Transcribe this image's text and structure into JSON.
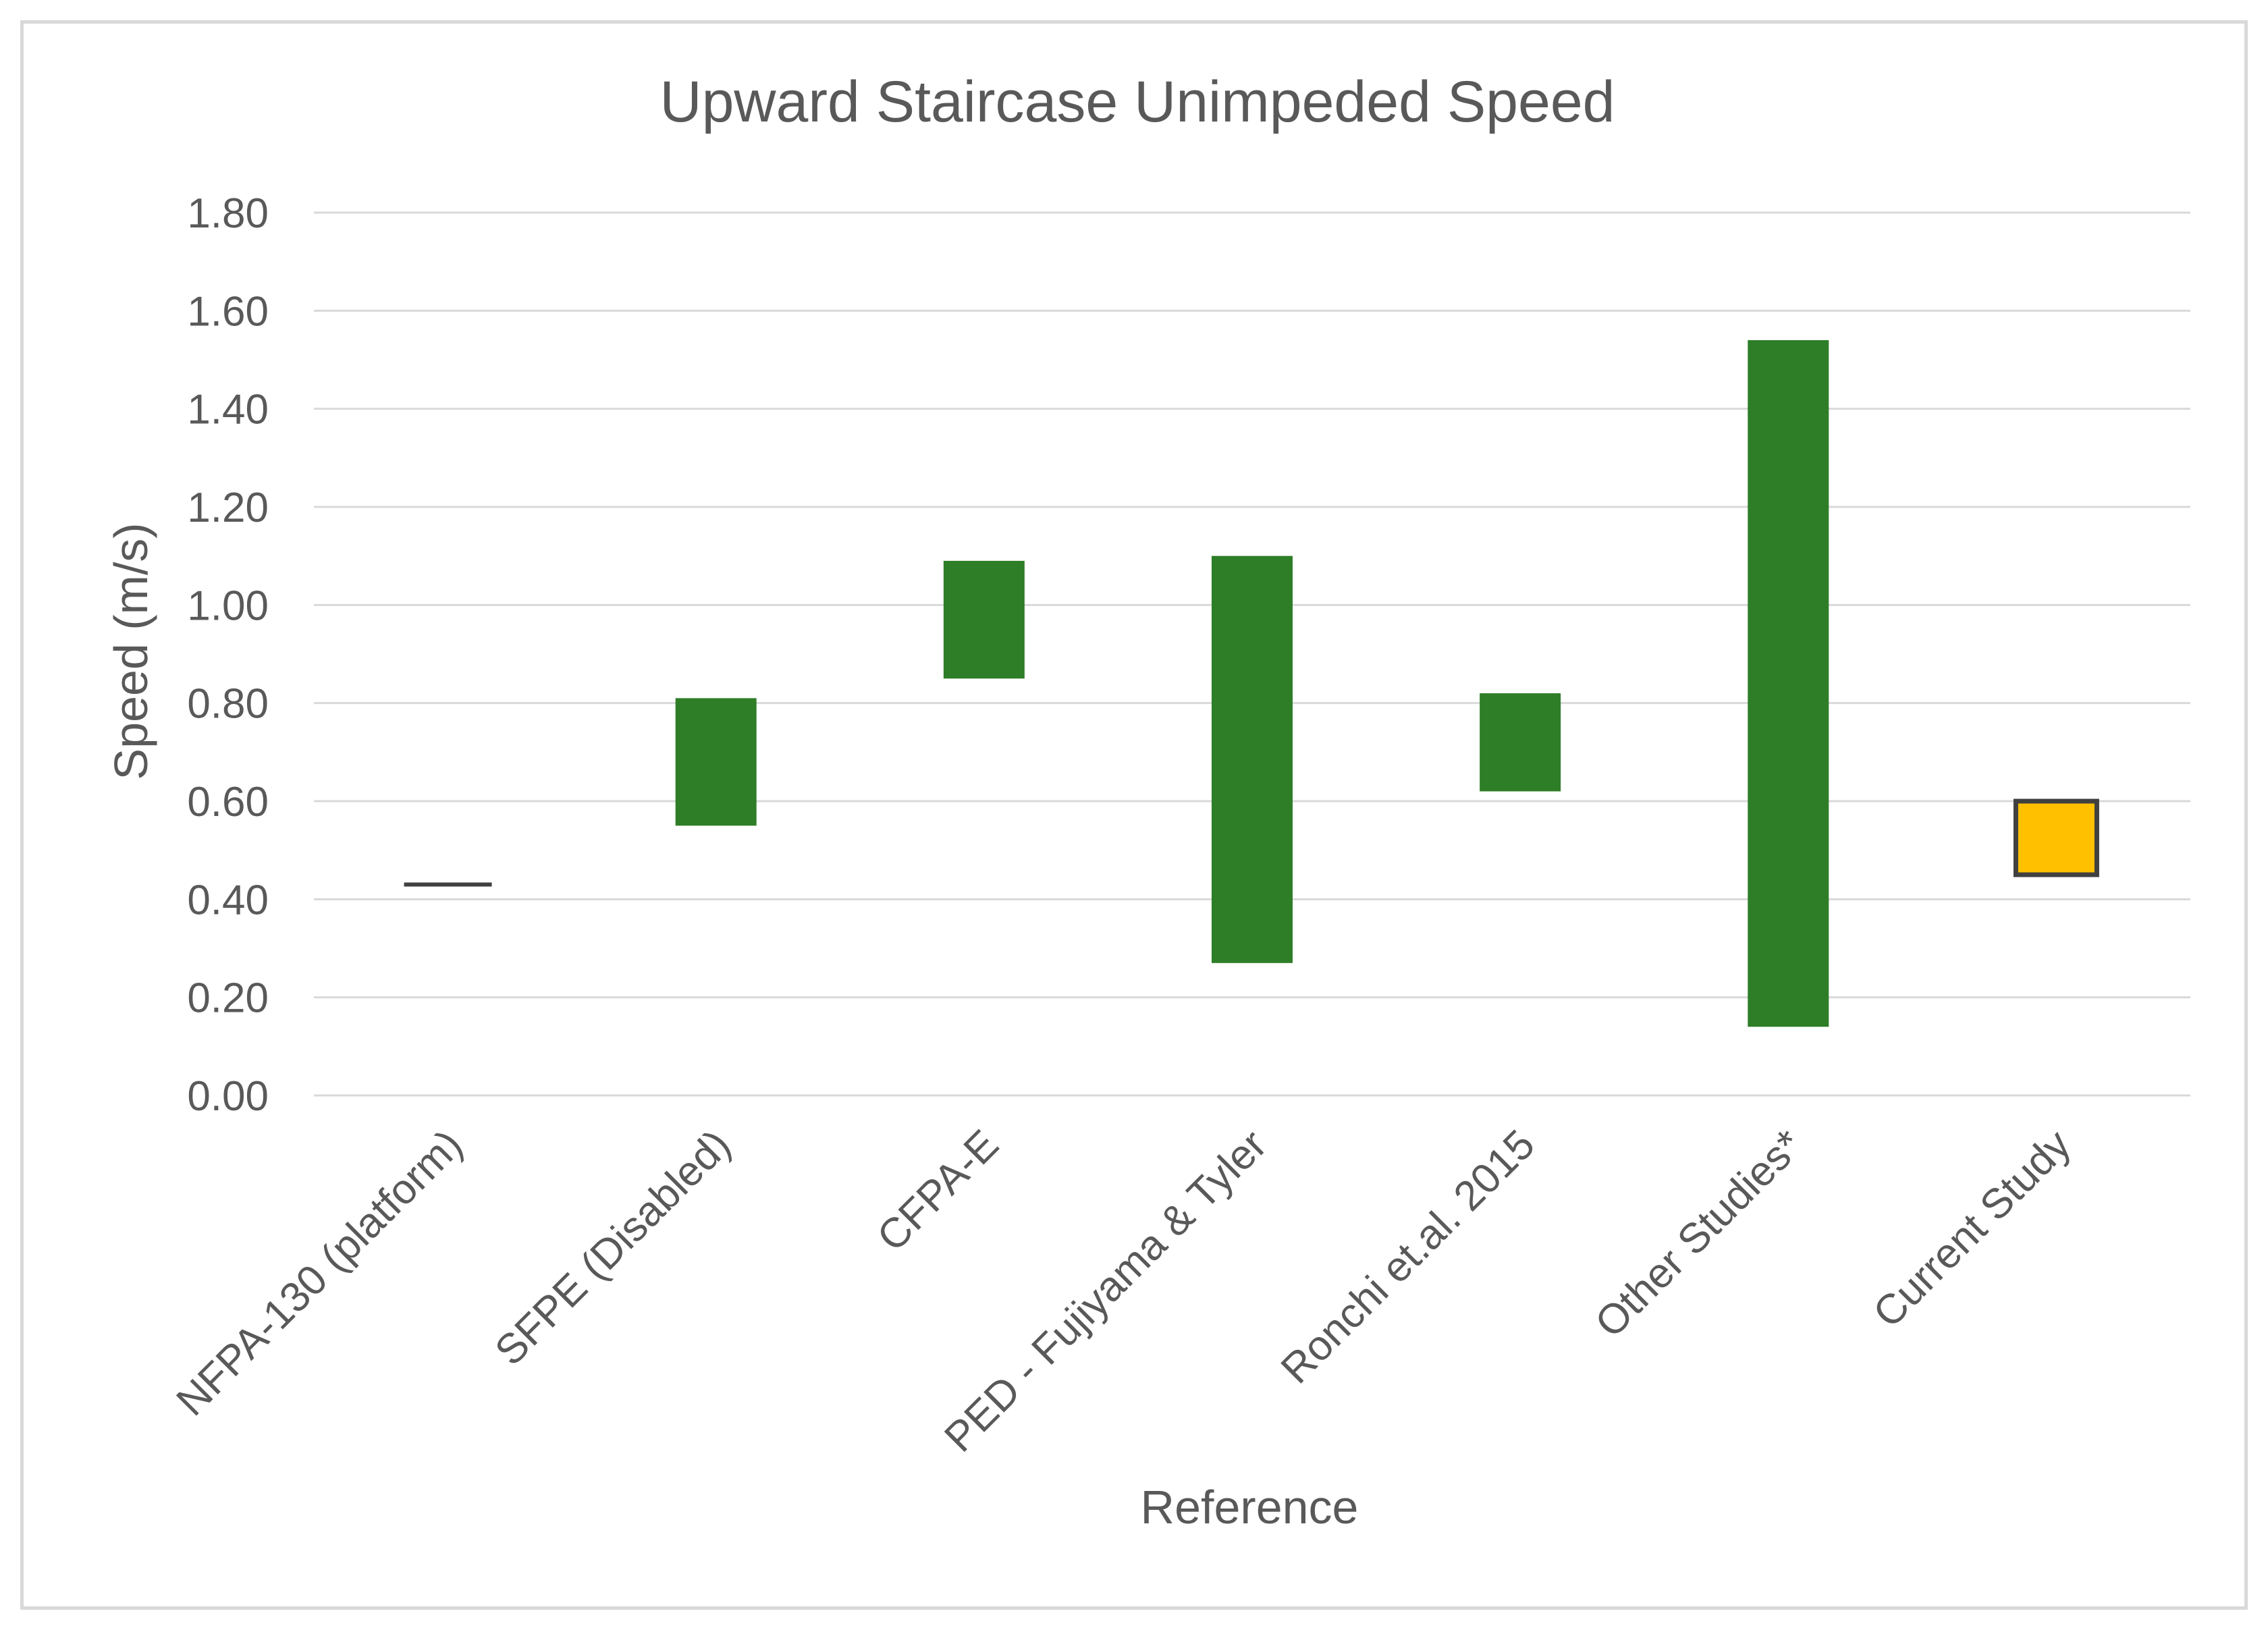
{
  "chart_data": {
    "type": "bar",
    "subtype": "floating-range",
    "title": "Upward Staircase Unimpeded Speed",
    "xlabel": "Reference",
    "ylabel": "Speed (m/s)",
    "ylim": [
      0,
      1.8
    ],
    "yticks": [
      "0.00",
      "0.20",
      "0.40",
      "0.60",
      "0.80",
      "1.00",
      "1.20",
      "1.40",
      "1.60",
      "1.80"
    ],
    "grid": true,
    "legend": "none",
    "categories": [
      "NFPA-130 (platform)",
      "SFPE (Disabled)",
      "CFPA-E",
      "PED - Fujiyama & Tyler",
      "Ronchi et.al. 2015",
      "Other Studies*",
      "Current Study"
    ],
    "ranges": [
      {
        "low": 0.43,
        "high": 0.43
      },
      {
        "low": 0.55,
        "high": 0.81
      },
      {
        "low": 0.85,
        "high": 1.09
      },
      {
        "low": 0.27,
        "high": 1.1
      },
      {
        "low": 0.62,
        "high": 0.82
      },
      {
        "low": 0.14,
        "high": 1.54
      },
      {
        "low": 0.45,
        "high": 0.6
      }
    ],
    "colors": [
      "#404040",
      "#2e7d27",
      "#2e7d27",
      "#2e7d27",
      "#2e7d27",
      "#2e7d27",
      "#ffc000"
    ],
    "outline_color": "#404040"
  }
}
